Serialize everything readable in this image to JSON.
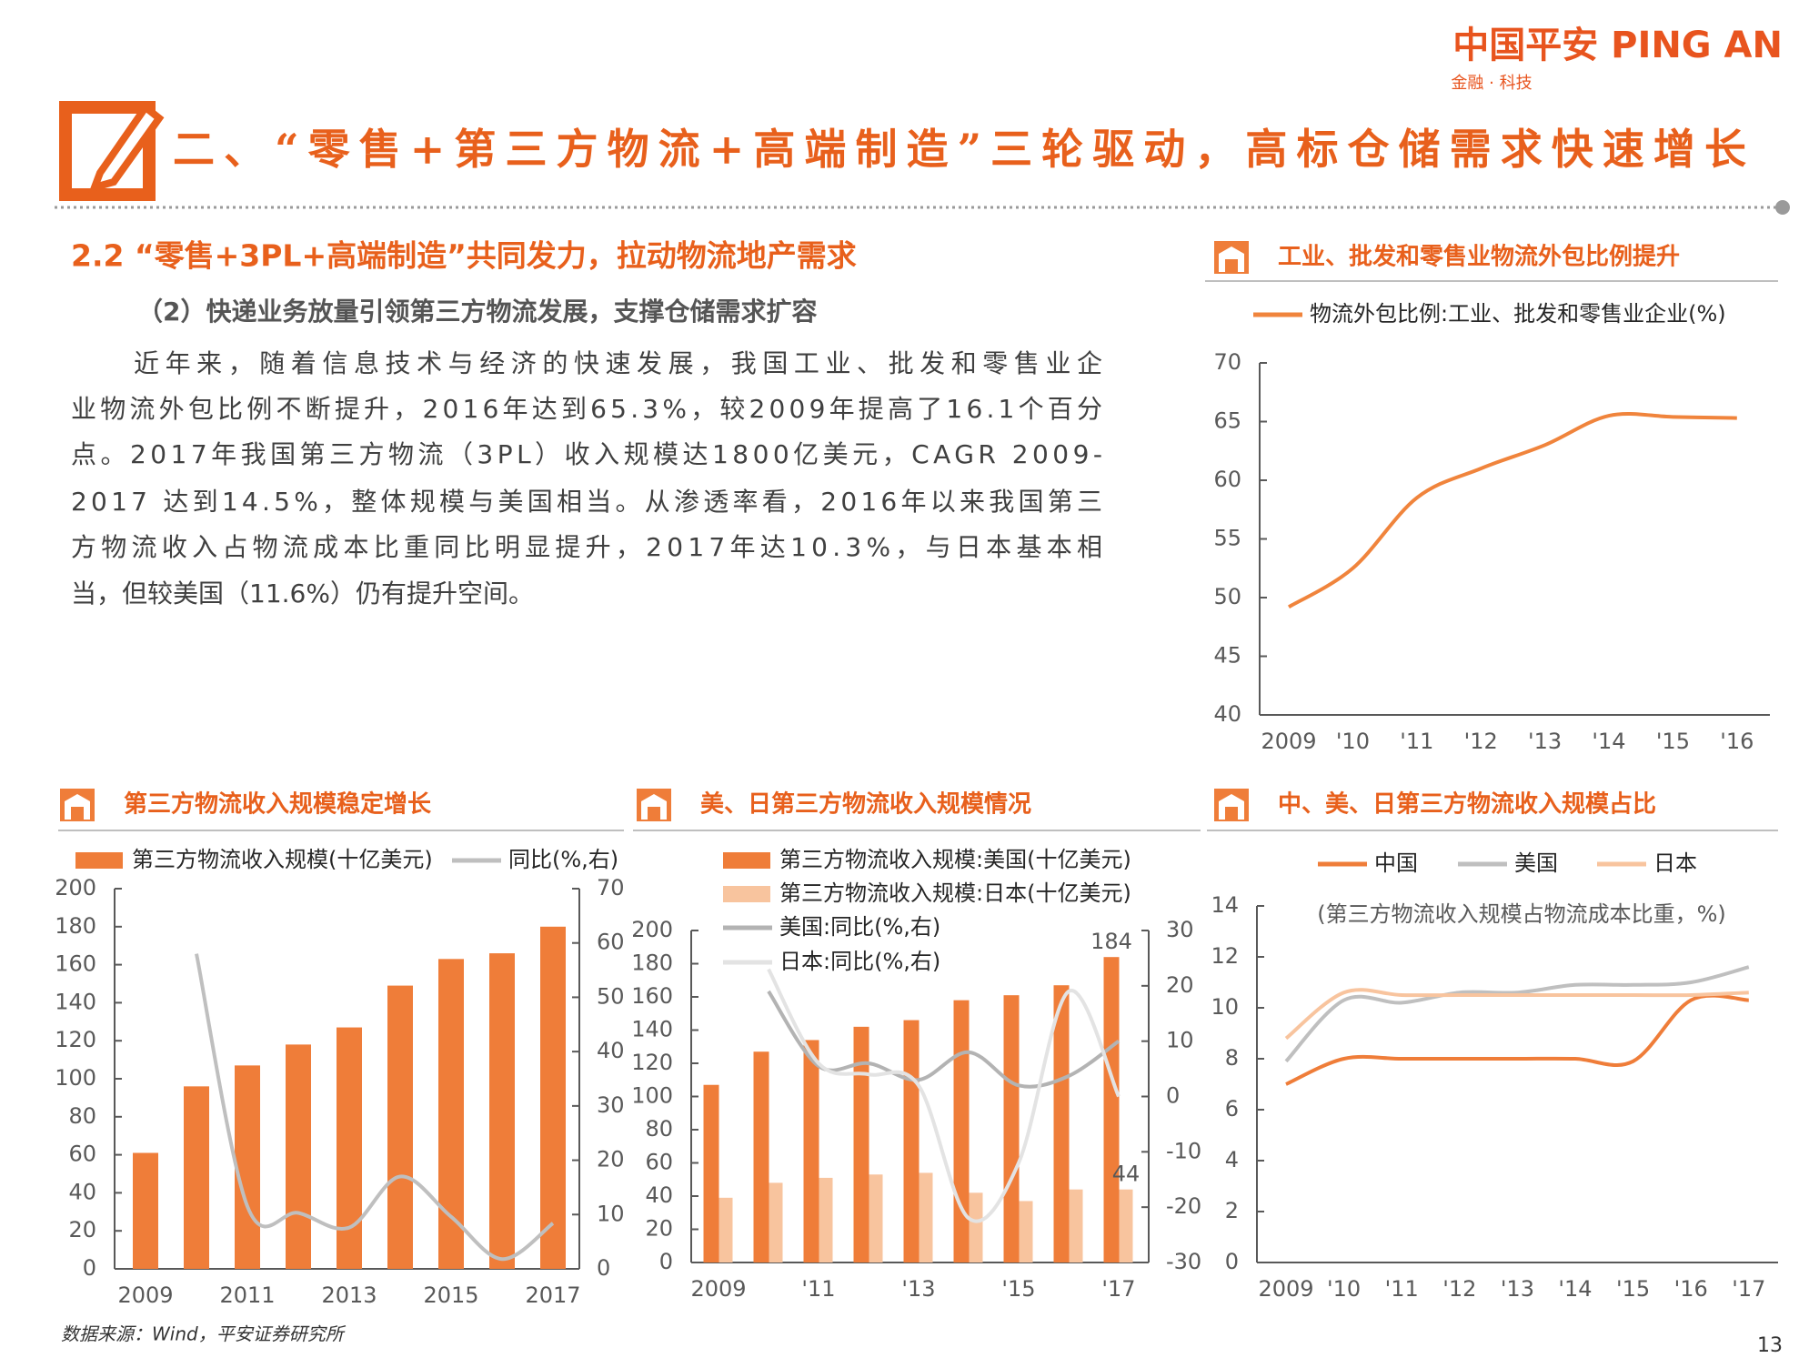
{
  "header": {
    "logo": "中国平安 PING AN",
    "tagline": "金融 · 科技",
    "title": "二、“零售+第三方物流+高端制造”三轮驱动，高标仓储需求快速增长"
  },
  "section": {
    "heading": "2.2 “零售+3PL+高端制造”共同发力，拉动物流地产需求",
    "subheading": "（2）快递业务放量引领第三方物流发展，支撑仓储需求扩容",
    "paragraph": [
      "近年来，随着信息技术与经济的快速发展，我国工业、批发和零售业企",
      "业物流外包比例不断提升，2016年达到65.3%，较2009年提高了16.1个百分",
      "点。2017年我国第三方物流（3PL）收入规模达1800亿美元，CAGR 2009-",
      "2017 达到14.5%，整体规模与美国相当。从渗透率看，2016年以来我国第三",
      "方物流收入占物流成本比重同比明显提升，2017年达10.3%，与日本基本相",
      "当，但较美国（11.6%）仍有提升空间。"
    ]
  },
  "chart_data": [
    {
      "type": "line",
      "title": "工业、批发和零售业物流外包比例提升",
      "categories": [
        "2009",
        "'10",
        "'11",
        "'12",
        "'13",
        "'14",
        "'15",
        "'16"
      ],
      "series": [
        {
          "name": "物流外包比例:工业、批发和零售业企业(%)",
          "color": "#f0843c",
          "values": [
            49.2,
            52.5,
            58.5,
            61,
            63,
            65.5,
            65.4,
            65.3
          ]
        }
      ],
      "ylim": [
        40,
        70
      ],
      "yticks": [
        40,
        45,
        50,
        55,
        60,
        65,
        70
      ]
    },
    {
      "type": "combo",
      "title": "第三方物流收入规模稳定增长",
      "categories": [
        "2009",
        null,
        "2011",
        null,
        "2013",
        null,
        "2015",
        null,
        "2017"
      ],
      "series": [
        {
          "name": "第三方物流收入规模(十亿美元)",
          "type": "bar",
          "color": "#ef7d39",
          "values": [
            61,
            96,
            107,
            118,
            127,
            149,
            163,
            166,
            180
          ]
        },
        {
          "name": "同比(%,右)",
          "type": "line",
          "axis": "y2",
          "color": "#bfbfbf",
          "values": [
            null,
            58,
            11.5,
            10.3,
            7.6,
            17,
            9.6,
            1.8,
            8.4
          ]
        }
      ],
      "ylim": [
        0,
        200
      ],
      "yticks": [
        0,
        20,
        40,
        60,
        80,
        100,
        120,
        140,
        160,
        180,
        200
      ],
      "y2lim": [
        0,
        70
      ],
      "y2ticks": [
        0,
        10,
        20,
        30,
        40,
        50,
        60,
        70
      ]
    },
    {
      "type": "combo",
      "title": "美、日第三方物流收入规模情况",
      "categories": [
        "2009",
        null,
        "'11",
        null,
        "'13",
        null,
        "'15",
        null,
        "'17"
      ],
      "series": [
        {
          "name": "第三方物流收入规模:美国(十亿美元)",
          "type": "bar",
          "color": "#ef7d39",
          "label_last": true,
          "values": [
            107,
            127,
            134,
            142,
            146,
            158,
            161,
            167,
            184
          ]
        },
        {
          "name": "第三方物流收入规模:日本(十亿美元)",
          "type": "bar",
          "color": "#f8c49e",
          "label_last": true,
          "values": [
            39,
            48,
            51,
            53,
            54,
            42,
            37,
            44,
            44
          ]
        },
        {
          "name": "美国:同比(%,右)",
          "type": "line",
          "axis": "y2",
          "color": "#b3b3b3",
          "values": [
            null,
            19,
            5.5,
            6,
            3,
            8,
            2,
            3.7,
            10
          ]
        },
        {
          "name": "日本:同比(%,右)",
          "type": "line",
          "axis": "y2",
          "color": "#e3e3e3",
          "values": [
            null,
            23,
            6,
            4,
            2,
            -22,
            -12,
            19,
            0
          ]
        }
      ],
      "ylim": [
        0,
        200
      ],
      "yticks": [
        0,
        20,
        40,
        60,
        80,
        100,
        120,
        140,
        160,
        180,
        200
      ],
      "y2lim": [
        -30,
        30
      ],
      "y2ticks": [
        -30,
        -20,
        -10,
        0,
        10,
        20,
        30
      ]
    },
    {
      "type": "line",
      "title": "中、美、日第三方物流收入规模占比",
      "subtitle": "(第三方物流收入规模占物流成本比重，%)",
      "categories": [
        "2009",
        "'10",
        "'11",
        "'12",
        "'13",
        "'14",
        "'15",
        "'16",
        "'17"
      ],
      "series": [
        {
          "name": "中国",
          "color": "#ef7d39",
          "values": [
            7,
            8,
            8,
            8,
            8,
            8,
            7.9,
            10.3,
            10.3
          ]
        },
        {
          "name": "美国",
          "color": "#bfbfbf",
          "values": [
            7.9,
            10.3,
            10.2,
            10.6,
            10.6,
            10.9,
            10.9,
            11,
            11.6
          ]
        },
        {
          "name": "日本",
          "color": "#f8c49e",
          "values": [
            8.8,
            10.6,
            10.5,
            10.5,
            10.5,
            10.5,
            10.5,
            10.5,
            10.6
          ]
        }
      ],
      "ylim": [
        0,
        14
      ],
      "yticks": [
        0,
        2,
        4,
        6,
        8,
        10,
        12,
        14
      ]
    }
  ],
  "footer": {
    "source": "数据来源：Wind，平安证券研究所",
    "page": "13"
  }
}
